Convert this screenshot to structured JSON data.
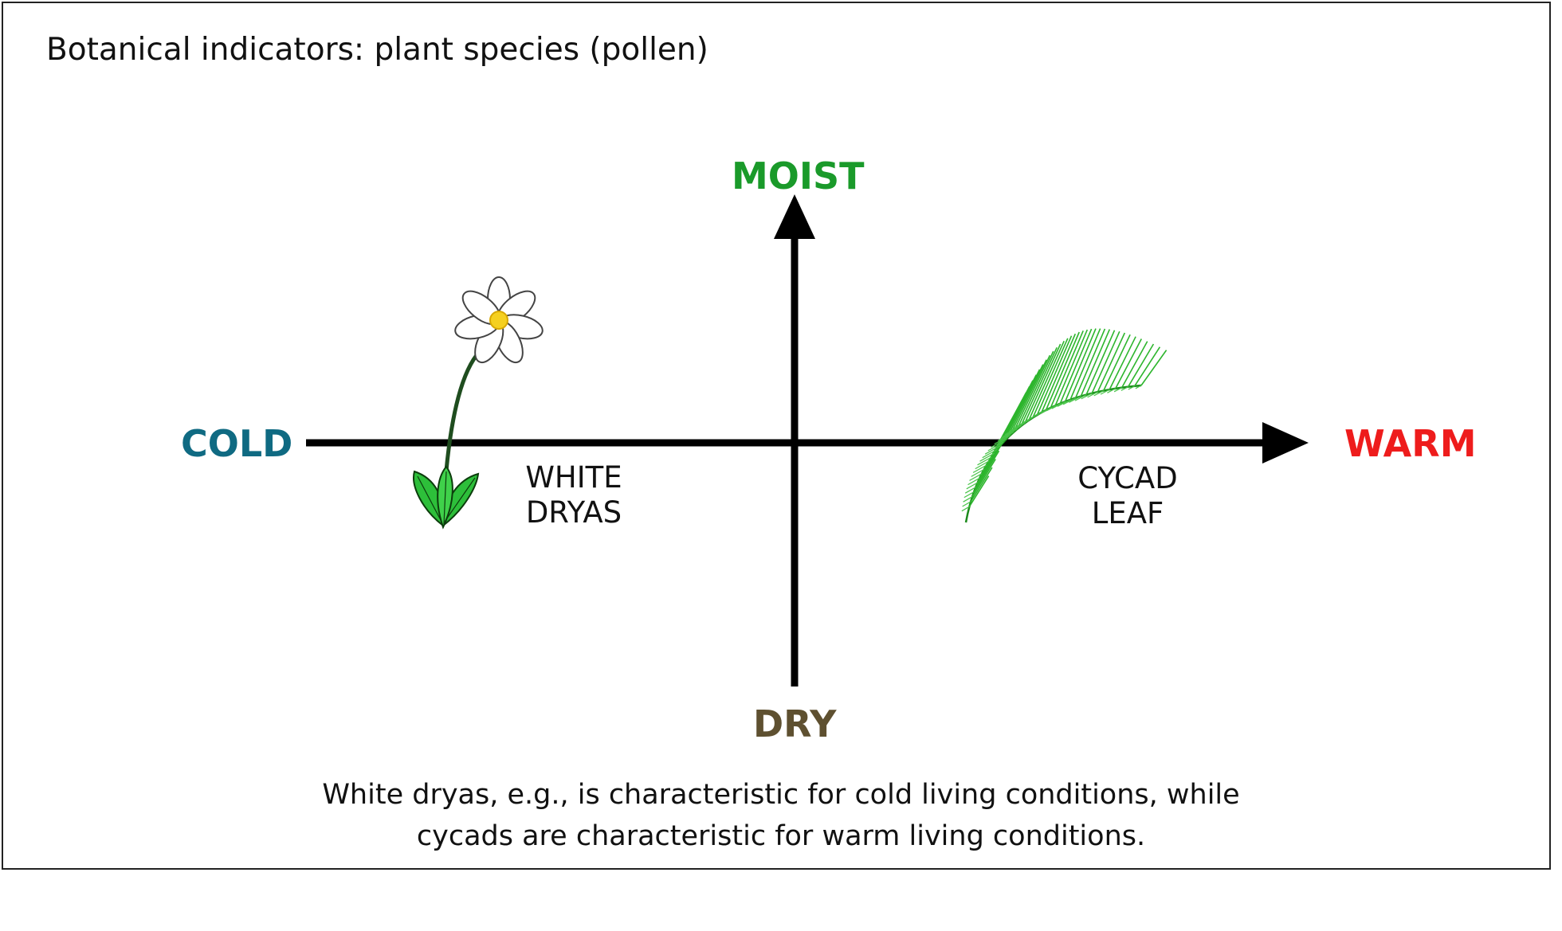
{
  "title": "Botanical indicators: plant species (pollen)",
  "axes": {
    "top": {
      "label": "MOIST",
      "color": "#1a9a2a"
    },
    "bottom": {
      "label": "DRY",
      "color": "#5e5030"
    },
    "left": {
      "label": "COLD",
      "color": "#0f6a82"
    },
    "right": {
      "label": "WARM",
      "color": "#ee1c1c"
    }
  },
  "plants": {
    "dryas": {
      "line1": "WHITE",
      "line2": "DRYAS",
      "icon": "white-dryas-flower-icon"
    },
    "cycad": {
      "line1": "CYCAD",
      "line2": "LEAF",
      "icon": "cycad-leaf-icon"
    }
  },
  "caption": {
    "line1": "White dryas, e.g., is characteristic for cold living conditions, while",
    "line2": "cycads are characteristic for warm living conditions."
  },
  "colors": {
    "axis": "#000000",
    "leaf_green": "#2db52d",
    "stem": "#1f4d1f",
    "flower_center": "#f5d020"
  }
}
